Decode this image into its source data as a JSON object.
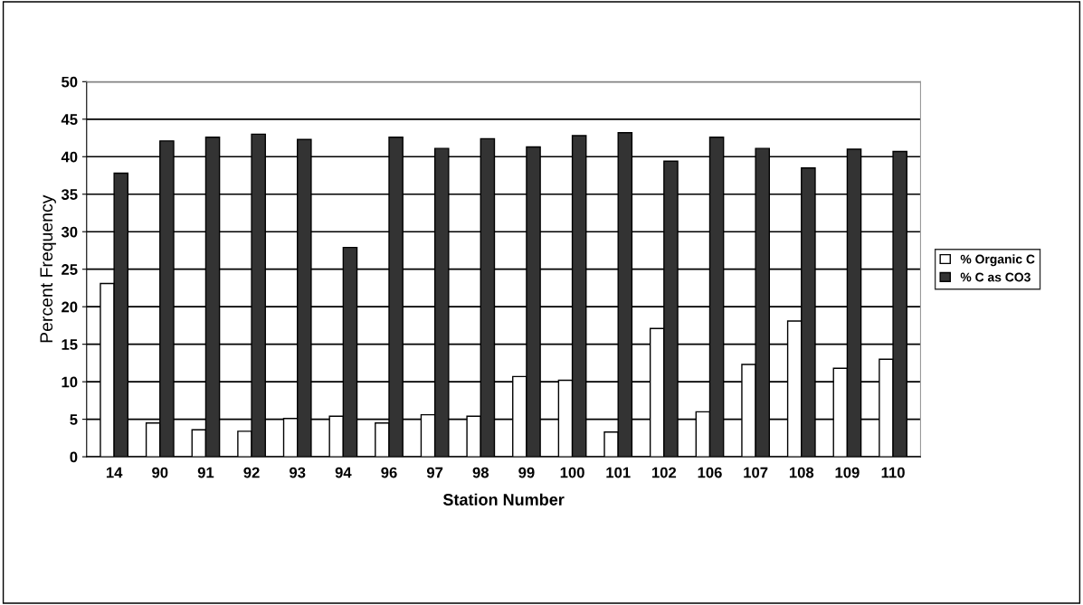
{
  "chart_data": {
    "type": "bar",
    "xlabel": "Station Number",
    "ylabel": "Percent Frequency",
    "categories": [
      "14",
      "90",
      "91",
      "92",
      "93",
      "94",
      "96",
      "97",
      "98",
      "99",
      "100",
      "101",
      "102",
      "106",
      "107",
      "108",
      "109",
      "110"
    ],
    "series": [
      {
        "name": "% Organic C",
        "color": "#ffffff",
        "values": [
          23.1,
          4.5,
          3.6,
          3.4,
          5.1,
          5.4,
          4.5,
          5.6,
          5.4,
          10.7,
          10.2,
          3.3,
          17.1,
          6.0,
          12.3,
          18.1,
          11.8,
          13.0
        ]
      },
      {
        "name": "% C as CO3",
        "color": "#333333",
        "values": [
          37.8,
          42.1,
          42.6,
          43.0,
          42.3,
          27.9,
          42.6,
          41.1,
          42.4,
          41.3,
          42.8,
          43.2,
          39.4,
          42.6,
          41.1,
          38.5,
          41.0,
          40.7
        ]
      }
    ],
    "ylim": [
      0,
      50
    ],
    "yticks": [
      0,
      5,
      10,
      15,
      20,
      25,
      30,
      35,
      40,
      45,
      50
    ],
    "grid": "y",
    "legend": "right"
  }
}
